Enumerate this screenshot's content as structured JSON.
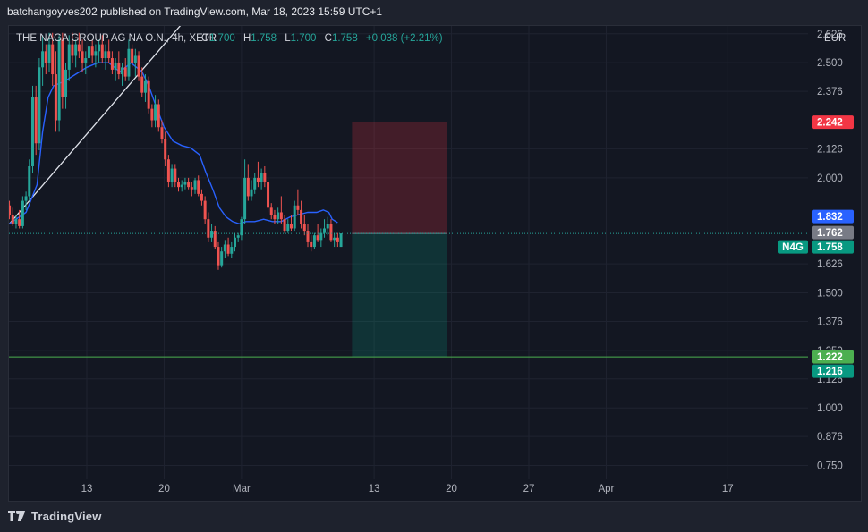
{
  "header": {
    "published": "batchangoyves202 published on TradingView.com, Mar 18, 2023 15:59 UTC+1"
  },
  "legend": {
    "symbol": "THE NAGA GROUP AG NA O.N., 4h, XETR",
    "o_label": "O",
    "o_value": "1.700",
    "h_label": "H",
    "h_value": "1.758",
    "l_label": "L",
    "l_value": "1.700",
    "c_label": "C",
    "c_value": "1.758",
    "change": "+0.038 (+2.21%)"
  },
  "currency": "EUR",
  "footer": {
    "brand": "TradingView"
  },
  "colors": {
    "up": "#26a69a",
    "down": "#ef5350",
    "ma": "#2962ff",
    "trend": "#e0e3eb",
    "support": "#4caf50",
    "stop_zone": "rgba(242,54,69,0.22)",
    "target_zone": "rgba(8,153,129,0.22)"
  },
  "chart_data": {
    "type": "candlestick",
    "timeframe": "4h",
    "y_ticks": [
      "2.626",
      "2.500",
      "2.376",
      "2.126",
      "2.000",
      "1.626",
      "1.500",
      "1.376",
      "1.250",
      "1.126",
      "1.000",
      "0.876",
      "0.750"
    ],
    "x_ticks": [
      "13",
      "20",
      "Mar",
      "13",
      "20",
      "27",
      "Apr",
      "17"
    ],
    "ylim": [
      0.69,
      2.66
    ],
    "x_tick_index": [
      0,
      7,
      14,
      26,
      33,
      40,
      47,
      58
    ],
    "candles": [
      [
        -7.0,
        1.88,
        1.9,
        1.82,
        1.84
      ],
      [
        -6.7,
        1.84,
        1.87,
        1.79,
        1.8
      ],
      [
        -6.4,
        1.8,
        1.84,
        1.78,
        1.82
      ],
      [
        -6.1,
        1.82,
        1.86,
        1.78,
        1.79
      ],
      [
        -5.8,
        1.79,
        1.92,
        1.78,
        1.9
      ],
      [
        -5.5,
        1.9,
        1.94,
        1.86,
        1.92
      ],
      [
        -5.2,
        1.92,
        2.08,
        1.9,
        2.05
      ],
      [
        -4.9,
        2.05,
        2.4,
        2.02,
        2.35
      ],
      [
        -4.6,
        2.35,
        2.4,
        2.1,
        2.15
      ],
      [
        -4.3,
        2.15,
        2.52,
        2.12,
        2.48
      ],
      [
        -4.0,
        2.48,
        2.62,
        2.4,
        2.55
      ],
      [
        -3.7,
        2.55,
        2.58,
        2.45,
        2.5
      ],
      [
        -3.4,
        2.5,
        2.63,
        2.46,
        2.58
      ],
      [
        -3.1,
        2.58,
        2.63,
        2.4,
        2.45
      ],
      [
        -2.8,
        2.45,
        2.55,
        2.2,
        2.25
      ],
      [
        -2.5,
        2.25,
        2.62,
        2.2,
        2.6
      ],
      [
        -2.2,
        2.6,
        2.63,
        2.3,
        2.35
      ],
      [
        -1.9,
        2.35,
        2.5,
        2.3,
        2.47
      ],
      [
        -1.6,
        2.47,
        2.62,
        2.42,
        2.58
      ],
      [
        -1.3,
        2.58,
        2.63,
        2.5,
        2.53
      ],
      [
        -1.0,
        2.53,
        2.6,
        2.48,
        2.58
      ],
      [
        -0.7,
        2.58,
        2.63,
        2.52,
        2.55
      ],
      [
        -0.4,
        2.55,
        2.6,
        2.46,
        2.5
      ],
      [
        -0.1,
        2.5,
        2.55,
        2.45,
        2.52
      ],
      [
        0.2,
        2.52,
        2.6,
        2.5,
        2.57
      ],
      [
        0.5,
        2.57,
        2.6,
        2.5,
        2.53
      ],
      [
        0.8,
        2.53,
        2.58,
        2.48,
        2.55
      ],
      [
        1.1,
        2.55,
        2.6,
        2.5,
        2.58
      ],
      [
        1.4,
        2.58,
        2.62,
        2.5,
        2.52
      ],
      [
        1.7,
        2.52,
        2.58,
        2.47,
        2.55
      ],
      [
        2.0,
        2.55,
        2.6,
        2.5,
        2.52
      ],
      [
        2.3,
        2.52,
        2.55,
        2.45,
        2.47
      ],
      [
        2.6,
        2.47,
        2.52,
        2.42,
        2.5
      ],
      [
        2.9,
        2.5,
        2.55,
        2.43,
        2.45
      ],
      [
        3.2,
        2.45,
        2.5,
        2.4,
        2.48
      ],
      [
        3.5,
        2.48,
        2.52,
        2.42,
        2.44
      ],
      [
        3.8,
        2.44,
        2.6,
        2.42,
        2.56
      ],
      [
        4.1,
        2.56,
        2.58,
        2.48,
        2.5
      ],
      [
        4.4,
        2.5,
        2.56,
        2.44,
        2.53
      ],
      [
        4.7,
        2.53,
        2.55,
        2.42,
        2.44
      ],
      [
        5.0,
        2.44,
        2.48,
        2.35,
        2.37
      ],
      [
        5.3,
        2.37,
        2.45,
        2.33,
        2.42
      ],
      [
        5.6,
        2.42,
        2.44,
        2.28,
        2.3
      ],
      [
        5.9,
        2.3,
        2.32,
        2.22,
        2.25
      ],
      [
        6.2,
        2.25,
        2.36,
        2.22,
        2.32
      ],
      [
        6.5,
        2.32,
        2.34,
        2.2,
        2.22
      ],
      [
        6.8,
        2.22,
        2.25,
        2.15,
        2.17
      ],
      [
        7.1,
        2.17,
        2.2,
        2.05,
        2.08
      ],
      [
        7.4,
        2.08,
        2.1,
        1.96,
        1.98
      ],
      [
        7.7,
        1.98,
        2.06,
        1.96,
        2.04
      ],
      [
        8.0,
        2.04,
        2.06,
        1.96,
        1.98
      ],
      [
        8.3,
        1.98,
        2.0,
        1.94,
        1.96
      ],
      [
        8.6,
        1.96,
        1.99,
        1.94,
        1.97
      ],
      [
        8.9,
        1.97,
        2.0,
        1.95,
        1.98
      ],
      [
        9.2,
        1.98,
        2.0,
        1.95,
        1.96
      ],
      [
        9.5,
        1.96,
        1.98,
        1.92,
        1.95
      ],
      [
        9.8,
        1.95,
        2.0,
        1.93,
        1.99
      ],
      [
        10.1,
        1.99,
        2.01,
        1.92,
        1.93
      ],
      [
        10.4,
        1.93,
        1.95,
        1.88,
        1.9
      ],
      [
        10.7,
        1.9,
        1.92,
        1.8,
        1.82
      ],
      [
        11.0,
        1.82,
        1.85,
        1.72,
        1.74
      ],
      [
        11.3,
        1.74,
        1.8,
        1.72,
        1.77
      ],
      [
        11.6,
        1.77,
        1.79,
        1.69,
        1.7
      ],
      [
        11.9,
        1.7,
        1.72,
        1.6,
        1.62
      ],
      [
        12.2,
        1.62,
        1.7,
        1.61,
        1.68
      ],
      [
        12.5,
        1.68,
        1.73,
        1.65,
        1.71
      ],
      [
        12.8,
        1.71,
        1.74,
        1.66,
        1.67
      ],
      [
        13.1,
        1.67,
        1.72,
        1.65,
        1.7
      ],
      [
        13.4,
        1.7,
        1.76,
        1.68,
        1.74
      ],
      [
        13.7,
        1.74,
        1.76,
        1.72,
        1.75
      ],
      [
        14.0,
        1.75,
        1.83,
        1.73,
        1.82
      ],
      [
        14.3,
        1.82,
        2.08,
        1.8,
        2.0
      ],
      [
        14.6,
        2.0,
        2.06,
        1.9,
        1.92
      ],
      [
        14.9,
        1.92,
        1.99,
        1.9,
        1.95
      ],
      [
        15.2,
        1.95,
        2.02,
        1.93,
        2.0
      ],
      [
        15.5,
        2.0,
        2.07,
        1.96,
        1.98
      ],
      [
        15.8,
        1.98,
        2.04,
        1.95,
        2.02
      ],
      [
        16.1,
        2.02,
        2.05,
        1.96,
        1.98
      ],
      [
        16.4,
        1.98,
        2.0,
        1.85,
        1.87
      ],
      [
        16.7,
        1.87,
        1.89,
        1.82,
        1.84
      ],
      [
        17.0,
        1.84,
        1.86,
        1.8,
        1.82
      ],
      [
        17.3,
        1.82,
        1.87,
        1.8,
        1.85
      ],
      [
        17.6,
        1.85,
        1.92,
        1.8,
        1.82
      ],
      [
        17.9,
        1.82,
        1.84,
        1.76,
        1.77
      ],
      [
        18.2,
        1.77,
        1.82,
        1.76,
        1.8
      ],
      [
        18.5,
        1.8,
        1.84,
        1.77,
        1.78
      ],
      [
        18.8,
        1.78,
        1.9,
        1.77,
        1.88
      ],
      [
        19.1,
        1.88,
        1.95,
        1.84,
        1.86
      ],
      [
        19.4,
        1.86,
        1.9,
        1.78,
        1.8
      ],
      [
        19.7,
        1.8,
        1.84,
        1.75,
        1.77
      ],
      [
        20.0,
        1.77,
        1.8,
        1.7,
        1.72
      ],
      [
        20.3,
        1.72,
        1.75,
        1.68,
        1.7
      ],
      [
        20.6,
        1.7,
        1.76,
        1.69,
        1.75
      ],
      [
        20.9,
        1.75,
        1.8,
        1.72,
        1.73
      ],
      [
        21.2,
        1.73,
        1.78,
        1.7,
        1.76
      ],
      [
        21.5,
        1.76,
        1.82,
        1.74,
        1.78
      ],
      [
        21.8,
        1.78,
        1.83,
        1.75,
        1.8
      ],
      [
        22.1,
        1.8,
        1.82,
        1.72,
        1.73
      ],
      [
        22.4,
        1.73,
        1.76,
        1.7,
        1.74
      ],
      [
        22.7,
        1.74,
        1.76,
        1.7,
        1.72
      ],
      [
        23.0,
        1.7,
        1.758,
        1.7,
        1.758
      ]
    ],
    "ma": [
      [
        -7.0,
        1.8
      ],
      [
        -5.5,
        1.85
      ],
      [
        -4.5,
        1.97
      ],
      [
        -4.0,
        2.2
      ],
      [
        -3.5,
        2.35
      ],
      [
        -3.0,
        2.4
      ],
      [
        -2.0,
        2.42
      ],
      [
        -1.0,
        2.45
      ],
      [
        0.0,
        2.48
      ],
      [
        1.0,
        2.5
      ],
      [
        2.0,
        2.5
      ],
      [
        3.0,
        2.46
      ],
      [
        4.0,
        2.5
      ],
      [
        5.0,
        2.46
      ],
      [
        5.6,
        2.4
      ],
      [
        6.2,
        2.32
      ],
      [
        7.0,
        2.22
      ],
      [
        7.8,
        2.16
      ],
      [
        8.6,
        2.14
      ],
      [
        9.4,
        2.13
      ],
      [
        10.2,
        2.1
      ],
      [
        10.8,
        2.02
      ],
      [
        11.4,
        1.95
      ],
      [
        12.0,
        1.87
      ],
      [
        12.6,
        1.83
      ],
      [
        13.2,
        1.81
      ],
      [
        13.8,
        1.8
      ],
      [
        14.4,
        1.81
      ],
      [
        15.2,
        1.81
      ],
      [
        16.0,
        1.82
      ],
      [
        16.8,
        1.81
      ],
      [
        17.6,
        1.81
      ],
      [
        18.4,
        1.83
      ],
      [
        19.2,
        1.84
      ],
      [
        20.0,
        1.85
      ],
      [
        20.8,
        1.85
      ],
      [
        21.4,
        1.86
      ],
      [
        21.9,
        1.85
      ],
      [
        22.2,
        1.82
      ],
      [
        22.7,
        1.805
      ]
    ],
    "trendline": {
      "from": [
        -7.0,
        1.8
      ],
      "to": [
        8.8,
        2.68
      ]
    },
    "support_level": 1.222,
    "current_price": 1.758,
    "position": {
      "entry": 1.758,
      "stop": 2.242,
      "target": 1.222,
      "start_x": 24.0,
      "end_x": 32.6
    },
    "price_labels": [
      {
        "value": "2.242",
        "price": 2.242,
        "color": "#f23645",
        "text_color": "#ffffff"
      },
      {
        "value": "1.832",
        "price": 1.832,
        "color": "#2962ff",
        "text_color": "#ffffff"
      },
      {
        "value": "1.762",
        "price": 1.762,
        "color": "#787b86",
        "text_color": "#ffffff"
      },
      {
        "value": "1.758",
        "price": 1.758,
        "color": "#089981",
        "text_color": "#ffffff",
        "tag": "N4G"
      },
      {
        "value": "1.222",
        "price": 1.222,
        "color": "#4caf50",
        "text_color": "#ffffff"
      },
      {
        "value": "1.216",
        "price": 1.216,
        "color": "#089981",
        "text_color": "#ffffff"
      }
    ]
  }
}
